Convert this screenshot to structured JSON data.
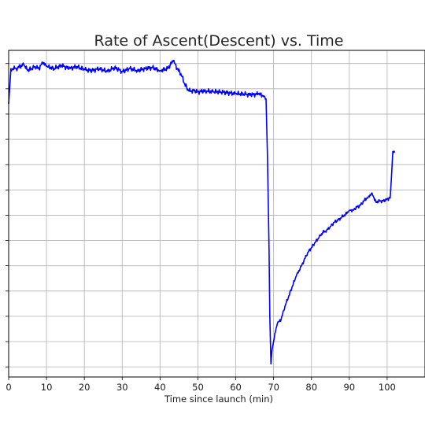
{
  "chart_data": {
    "type": "line",
    "title": "Rate of Ascent(Descent) vs. Time",
    "xlabel": "Time since launch (min)",
    "ylabel": "",
    "xlim": [
      0,
      110
    ],
    "ylim": [
      -1.85,
      1.38
    ],
    "x_ticks": [
      0,
      10,
      20,
      30,
      40,
      50,
      60,
      70,
      80,
      90,
      100
    ],
    "y_tick_values": [
      1.25,
      1.0,
      0.75,
      0.5,
      0.25,
      0.0,
      -0.25,
      -0.5,
      -0.75,
      -1.0,
      -1.25,
      -1.5,
      -1.75
    ],
    "grid": true,
    "series": [
      {
        "color": "#0000ff",
        "points": [
          [
            0,
            0.85
          ],
          [
            0.6,
            1.2
          ],
          [
            2,
            1.2
          ],
          [
            3,
            1.22
          ],
          [
            4,
            1.24
          ],
          [
            5,
            1.18
          ],
          [
            6,
            1.2
          ],
          [
            7,
            1.22
          ],
          [
            8,
            1.2
          ],
          [
            9,
            1.26
          ],
          [
            10,
            1.22
          ],
          [
            12,
            1.2
          ],
          [
            14,
            1.23
          ],
          [
            16,
            1.2
          ],
          [
            18,
            1.22
          ],
          [
            20,
            1.19
          ],
          [
            22,
            1.18
          ],
          [
            24,
            1.2
          ],
          [
            26,
            1.17
          ],
          [
            28,
            1.21
          ],
          [
            30,
            1.17
          ],
          [
            32,
            1.2
          ],
          [
            34,
            1.18
          ],
          [
            36,
            1.2
          ],
          [
            38,
            1.21
          ],
          [
            40,
            1.18
          ],
          [
            42,
            1.2
          ],
          [
            43.5,
            1.28
          ],
          [
            44.5,
            1.2
          ],
          [
            45.5,
            1.15
          ],
          [
            46.5,
            1.05
          ],
          [
            47.5,
            0.98
          ],
          [
            49,
            0.98
          ],
          [
            50,
            0.97
          ],
          [
            52,
            0.98
          ],
          [
            54,
            0.97
          ],
          [
            56,
            0.97
          ],
          [
            58,
            0.96
          ],
          [
            60,
            0.95
          ],
          [
            62,
            0.95
          ],
          [
            64,
            0.94
          ],
          [
            66,
            0.95
          ],
          [
            67.5,
            0.93
          ],
          [
            68,
            0.9
          ],
          [
            68.4,
            0.3
          ],
          [
            68.8,
            -0.6
          ],
          [
            69,
            -1.25
          ],
          [
            69.3,
            -1.72
          ],
          [
            69.6,
            -1.58
          ],
          [
            70,
            -1.5
          ],
          [
            70.5,
            -1.4
          ],
          [
            71,
            -1.32
          ],
          [
            72,
            -1.28
          ],
          [
            73,
            -1.15
          ],
          [
            74,
            -1.05
          ],
          [
            75,
            -0.95
          ],
          [
            76,
            -0.85
          ],
          [
            77,
            -0.78
          ],
          [
            78,
            -0.7
          ],
          [
            79,
            -0.62
          ],
          [
            80,
            -0.57
          ],
          [
            81,
            -0.52
          ],
          [
            82,
            -0.47
          ],
          [
            83,
            -0.42
          ],
          [
            84,
            -0.4
          ],
          [
            85,
            -0.36
          ],
          [
            86,
            -0.32
          ],
          [
            87,
            -0.3
          ],
          [
            88,
            -0.27
          ],
          [
            89,
            -0.24
          ],
          [
            90,
            -0.2
          ],
          [
            91,
            -0.2
          ],
          [
            92,
            -0.17
          ],
          [
            93,
            -0.15
          ],
          [
            94,
            -0.1
          ],
          [
            95,
            -0.07
          ],
          [
            96,
            -0.03
          ],
          [
            97,
            -0.12
          ],
          [
            98,
            -0.11
          ],
          [
            99,
            -0.11
          ],
          [
            100,
            -0.09
          ],
          [
            100.8,
            -0.08
          ],
          [
            101.1,
            0.1
          ],
          [
            101.5,
            0.38
          ],
          [
            102,
            0.37
          ]
        ]
      }
    ]
  }
}
